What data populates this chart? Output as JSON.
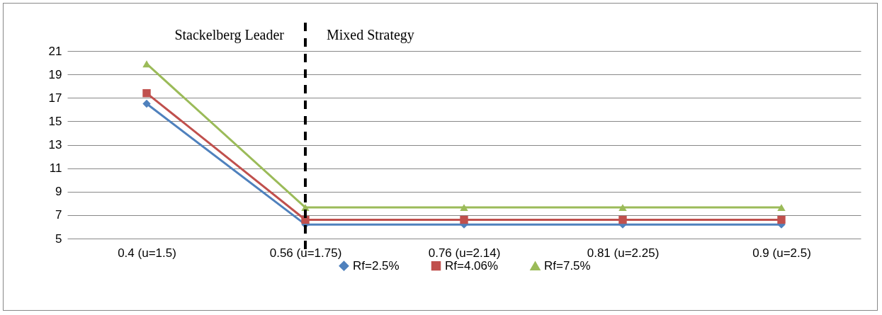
{
  "chart_data": {
    "type": "line",
    "categories": [
      "0.4 (u=1.5)",
      "0.56 (u=1.75)",
      "0.76 (u=2.14)",
      "0.81 (u=2.25)",
      "0.9 (u=2.5)"
    ],
    "series": [
      {
        "name": "Rf=2.5%",
        "color": "#4f81bd",
        "marker": "diamond",
        "values": [
          16.5,
          6.2,
          6.2,
          6.2,
          6.2
        ]
      },
      {
        "name": "Rf=4.06%",
        "color": "#c0504d",
        "marker": "square",
        "values": [
          17.4,
          6.6,
          6.6,
          6.6,
          6.6
        ]
      },
      {
        "name": "Rf=7.5%",
        "color": "#9bbb59",
        "marker": "triangle",
        "values": [
          19.9,
          7.65,
          7.65,
          7.65,
          7.65
        ]
      }
    ],
    "ylim": [
      5,
      21
    ],
    "yticks": [
      5,
      7,
      9,
      11,
      13,
      15,
      17,
      19,
      21
    ],
    "grid": "y",
    "legend": "bottom",
    "ref_lines": [
      {
        "axis": "x",
        "value": "0.56 (u=1.75)",
        "color": "#000000",
        "line_style": "dashed"
      }
    ],
    "annotations": [
      "Stackelberg Leader",
      "Mixed Strategy"
    ]
  }
}
